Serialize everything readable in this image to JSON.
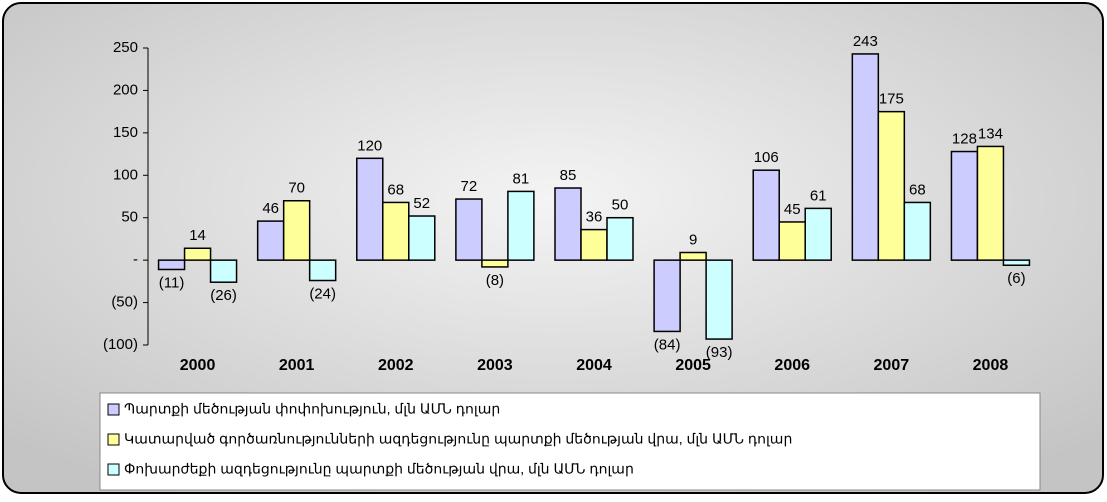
{
  "chart_data": {
    "type": "bar",
    "categories": [
      "2000",
      "2001",
      "2002",
      "2003",
      "2004",
      "2005",
      "2006",
      "2007",
      "2008"
    ],
    "series": [
      {
        "name": "Պարտքի մեծության փոփոխություն, մլն ԱՄՆ դոլար",
        "color": "#ccccff",
        "values": [
          -11,
          46,
          120,
          72,
          85,
          -84,
          106,
          243,
          128
        ],
        "value_labels": [
          "(11)",
          "46",
          "120",
          "72",
          "85",
          "(84)",
          "106",
          "243",
          "128"
        ]
      },
      {
        "name": "Կատարված գործառնությունների ազդեցությունը պարտքի մեծության վրա, մլն ԱՄՆ դոլար",
        "color": "#ffff99",
        "values": [
          14,
          70,
          68,
          -8,
          36,
          9,
          45,
          175,
          134
        ],
        "value_labels": [
          "14",
          "70",
          "68",
          "(8)",
          "36",
          "9",
          "45",
          "175",
          "134"
        ]
      },
      {
        "name": "Փոխարժեքի ազդեցությունը պարտքի մեծության վրա, մլն ԱՄՆ դոլար",
        "color": "#ccffff",
        "values": [
          -26,
          -24,
          52,
          81,
          50,
          -93,
          61,
          68,
          -6
        ],
        "value_labels": [
          "(26)",
          "(24)",
          "52",
          "81",
          "50",
          "(93)",
          "61",
          "68",
          "(6)"
        ]
      }
    ],
    "ylim": [
      -100,
      250
    ],
    "yticks": [
      {
        "value": -100,
        "label": "(100)"
      },
      {
        "value": -50,
        "label": "(50)"
      },
      {
        "value": 0,
        "label": "-"
      },
      50,
      100,
      150,
      200,
      250
    ]
  }
}
